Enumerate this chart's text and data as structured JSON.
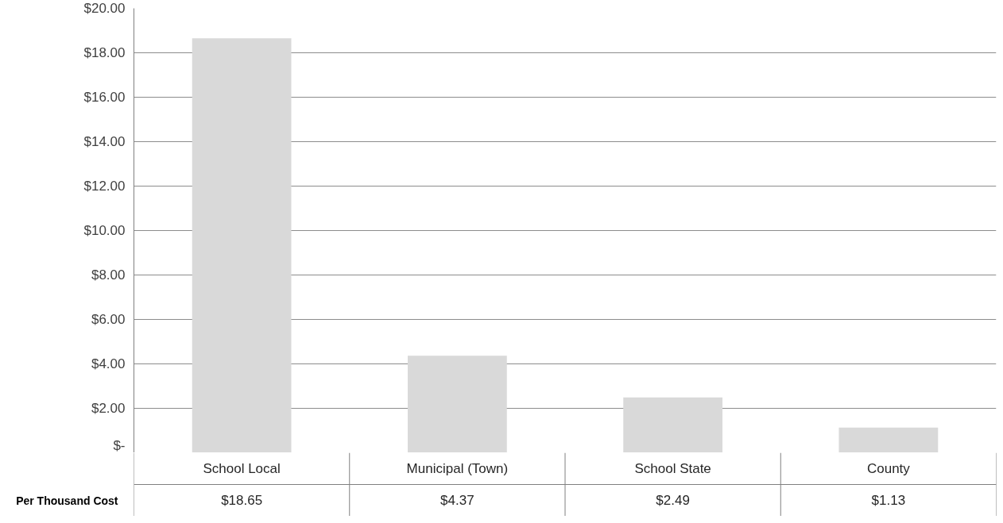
{
  "chart_data": {
    "type": "bar",
    "categories": [
      "School Local",
      "Municipal (Town)",
      "School State",
      "County"
    ],
    "series": [
      {
        "name": "Per Thousand Cost",
        "color": "#d9d9d9",
        "values": [
          18.65,
          4.37,
          2.49,
          1.13
        ],
        "value_labels": [
          "$18.65",
          "$4.37",
          "$2.49",
          "$1.13"
        ]
      }
    ],
    "ylim": [
      0,
      20
    ],
    "yticks": [
      {
        "value": 0,
        "label": "$-"
      },
      {
        "value": 2,
        "label": "$2.00"
      },
      {
        "value": 4,
        "label": "$4.00"
      },
      {
        "value": 6,
        "label": "$6.00"
      },
      {
        "value": 8,
        "label": "$8.00"
      },
      {
        "value": 10,
        "label": "$10.00"
      },
      {
        "value": 12,
        "label": "$12.00"
      },
      {
        "value": 14,
        "label": "$14.00"
      },
      {
        "value": 16,
        "label": "$16.00"
      },
      {
        "value": 18,
        "label": "$18.00"
      },
      {
        "value": 20,
        "label": "$20.00"
      }
    ],
    "grid": "y"
  }
}
